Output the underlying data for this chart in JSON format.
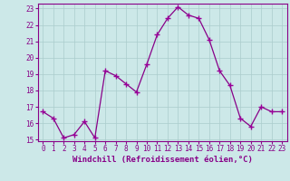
{
  "hours": [
    0,
    1,
    2,
    3,
    4,
    5,
    6,
    7,
    8,
    9,
    10,
    11,
    12,
    13,
    14,
    15,
    16,
    17,
    18,
    19,
    20,
    21,
    22,
    23
  ],
  "values": [
    16.7,
    16.3,
    15.1,
    15.3,
    16.1,
    15.1,
    19.2,
    18.9,
    18.4,
    17.9,
    19.6,
    21.4,
    22.4,
    23.1,
    22.6,
    22.4,
    21.1,
    19.2,
    18.3,
    16.3,
    15.8,
    17.0,
    16.7,
    16.7
  ],
  "line_color": "#990099",
  "marker_color": "#990099",
  "bg_color": "#cce8e8",
  "grid_color": "#aacccc",
  "xlabel": "Windchill (Refroidissement éolien,°C)",
  "ylim": [
    15,
    23
  ],
  "xlim": [
    -0.5,
    23.5
  ],
  "yticks": [
    15,
    16,
    17,
    18,
    19,
    20,
    21,
    22,
    23
  ],
  "xticks": [
    0,
    1,
    2,
    3,
    4,
    5,
    6,
    7,
    8,
    9,
    10,
    11,
    12,
    13,
    14,
    15,
    16,
    17,
    18,
    19,
    20,
    21,
    22,
    23
  ],
  "xlabel_fontsize": 6.5,
  "tick_fontsize": 5.5,
  "tick_color": "#880088",
  "line_color2": "#880088"
}
